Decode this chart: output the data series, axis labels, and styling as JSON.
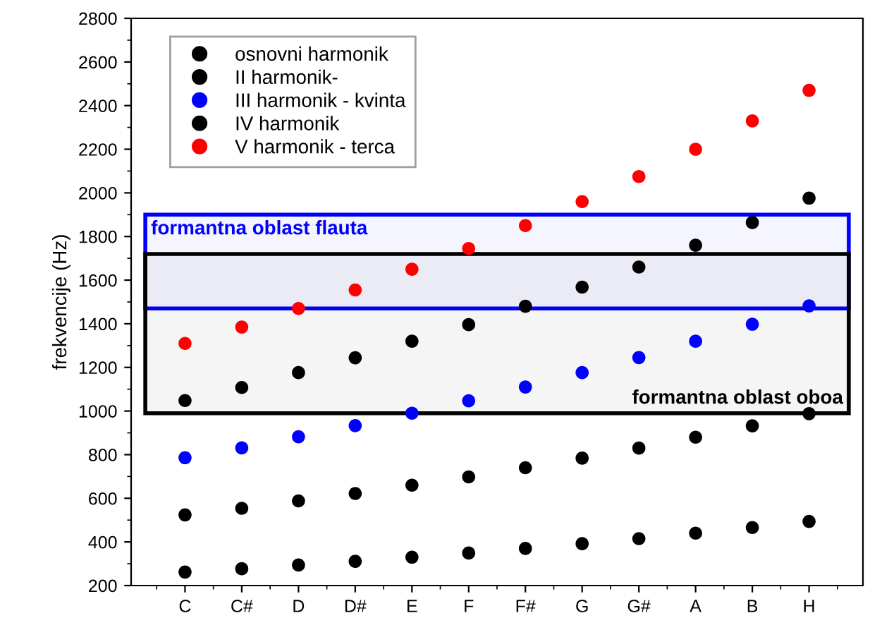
{
  "chart_data": {
    "type": "scatter",
    "ylabel": "frekvencije (Hz)",
    "categories": [
      "C",
      "C#",
      "D",
      "D#",
      "E",
      "F",
      "F#",
      "G",
      "G#",
      "A",
      "B",
      "H"
    ],
    "series": [
      {
        "name": "osnovni harmonik",
        "color": "#000000",
        "values": [
          262,
          277,
          294,
          311,
          330,
          349,
          370,
          392,
          415,
          440,
          466,
          494
        ]
      },
      {
        "name": "II harmonik-",
        "color": "#000000",
        "values": [
          524,
          554,
          588,
          622,
          660,
          698,
          740,
          784,
          830,
          880,
          932,
          988
        ]
      },
      {
        "name": "III harmonik - kvinta",
        "color": "#0000ff",
        "values": [
          786,
          831,
          882,
          933,
          990,
          1047,
          1110,
          1176,
          1245,
          1320,
          1398,
          1482
        ]
      },
      {
        "name": "IV harmonik",
        "color": "#000000",
        "values": [
          1048,
          1108,
          1176,
          1244,
          1320,
          1396,
          1480,
          1568,
          1660,
          1760,
          1864,
          1976
        ]
      },
      {
        "name": "V harmonik - terca",
        "color": "#ff0000",
        "values": [
          1310,
          1385,
          1470,
          1555,
          1650,
          1745,
          1850,
          1960,
          2075,
          2200,
          2330,
          2470
        ]
      }
    ],
    "bands": [
      {
        "axis": "y",
        "from": 1470,
        "to": 1900,
        "label": "formantna oblast flauta",
        "color": "#0000ff"
      },
      {
        "axis": "y",
        "from": 990,
        "to": 1720,
        "label": "formantna oblast oboa",
        "color": "#000000"
      }
    ],
    "ylim": [
      200,
      2800
    ],
    "yticks": [
      200,
      400,
      600,
      800,
      1000,
      1200,
      1400,
      1600,
      1800,
      2000,
      2200,
      2400,
      2600,
      2800
    ],
    "grid": false,
    "legend": "top left",
    "marker": "circle"
  }
}
